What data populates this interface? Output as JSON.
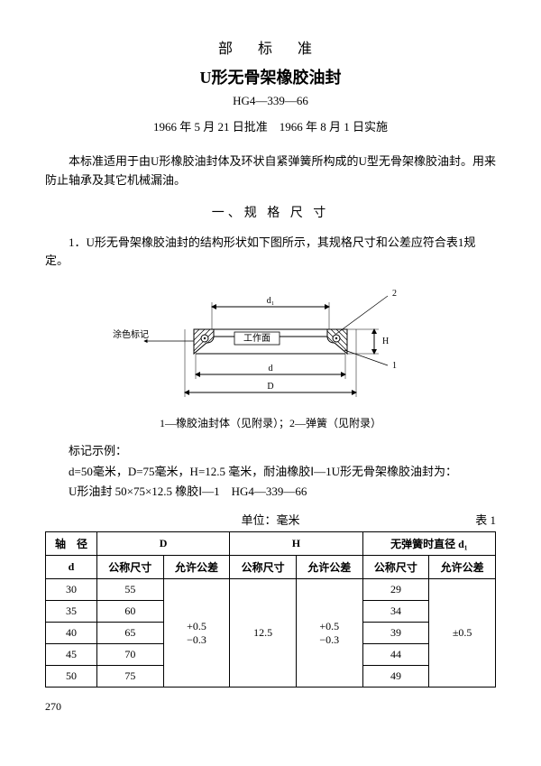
{
  "header": {
    "supertitle": "部 标 准",
    "title": "U形无骨架橡胶油封",
    "code": "HG4—339—66",
    "dates": "1966 年 5 月 21 日批准　1966 年 8 月 1 日实施"
  },
  "intro": "本标准适用于由U形橡胶油封体及环状自紧弹簧所构成的U型无骨架橡胶油封。用来防止轴承及其它机械漏油。",
  "section1": {
    "heading": "一、规 格 尺 寸",
    "item1": "1．U形无骨架橡胶油封的结构形状如下图所示，其规格尺寸和公差应符合表1规定。"
  },
  "diagram": {
    "label_d1": "d₁",
    "label_d": "d",
    "label_D": "D",
    "label_H": "H",
    "label_work": "工作面",
    "label_color": "涂色标记",
    "callout_1": "1",
    "callout_2": "2",
    "caption": "1—橡胶油封体（见附录）；2—弹簧（见附录）"
  },
  "example": {
    "label": "标记示例：",
    "line1": "d=50毫米，D=75毫米，H=12.5 毫米，耐油橡胶Ⅰ—1U形无骨架橡胶油封为：",
    "line2": "U形油封 50×75×12.5 橡胶Ⅰ—1　HG4—339—66"
  },
  "table": {
    "unit": "单位：毫米",
    "title": "表 1",
    "headers": {
      "col_d": "轴　径",
      "col_d_sub": "d",
      "col_D": "D",
      "col_H": "H",
      "col_d1": "无弹簧时直径 d₁",
      "nominal": "公称尺寸",
      "tolerance": "允许公差"
    },
    "shared": {
      "D_tol": "+0.5\n−0.3",
      "H_nom": "12.5",
      "H_tol": "+0.5\n−0.3",
      "d1_tol": "±0.5"
    },
    "rows": [
      {
        "d": "30",
        "D": "55",
        "d1": "29"
      },
      {
        "d": "35",
        "D": "60",
        "d1": "34"
      },
      {
        "d": "40",
        "D": "65",
        "d1": "39"
      },
      {
        "d": "45",
        "D": "70",
        "d1": "44"
      },
      {
        "d": "50",
        "D": "75",
        "d1": "49"
      }
    ]
  },
  "page_num": "270"
}
